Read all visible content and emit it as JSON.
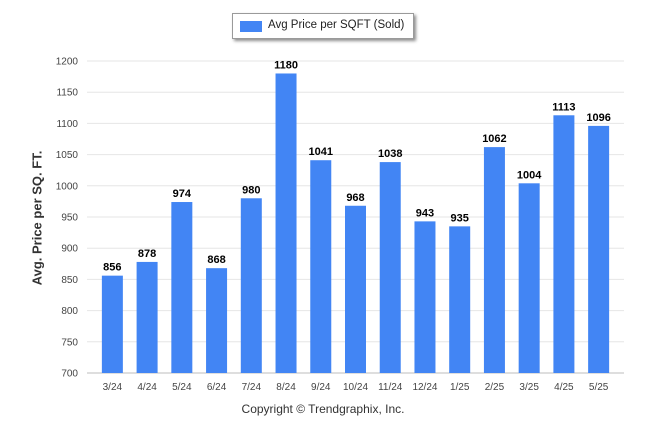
{
  "chart_data": {
    "type": "bar",
    "categories": [
      "3/24",
      "4/24",
      "5/24",
      "6/24",
      "7/24",
      "8/24",
      "9/24",
      "10/24",
      "11/24",
      "12/24",
      "1/25",
      "2/25",
      "3/25",
      "4/25",
      "5/25"
    ],
    "series": [
      {
        "name": "Avg Price per SQFT (Sold)",
        "values": [
          856,
          878,
          974,
          868,
          980,
          1180,
          1041,
          968,
          1038,
          943,
          935,
          1062,
          1004,
          1113,
          1096
        ],
        "color": "#4285f4"
      }
    ],
    "title": "",
    "xlabel": "",
    "ylabel": "Avg. Price per SQ. FT.",
    "ylim": [
      700,
      1200
    ],
    "yticks": [
      700,
      750,
      800,
      850,
      900,
      950,
      1000,
      1050,
      1100,
      1150,
      1200
    ],
    "grid": true,
    "legend_position": "top-center",
    "data_labels": true
  },
  "footer": {
    "copyright": "Copyright © Trendgraphix, Inc."
  }
}
